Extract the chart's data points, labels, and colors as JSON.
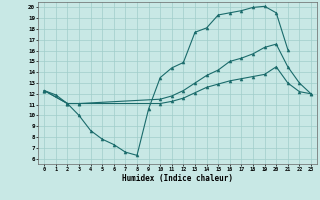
{
  "background_color": "#c8e8e5",
  "grid_color": "#a0ceca",
  "line_color": "#1a6b6b",
  "xlabel": "Humidex (Indice chaleur)",
  "xlim": [
    -0.5,
    23.5
  ],
  "ylim": [
    5.5,
    20.5
  ],
  "xticks": [
    0,
    1,
    2,
    3,
    4,
    5,
    6,
    7,
    8,
    9,
    10,
    11,
    12,
    13,
    14,
    15,
    16,
    17,
    18,
    19,
    20,
    21,
    22,
    23
  ],
  "yticks": [
    6,
    7,
    8,
    9,
    10,
    11,
    12,
    13,
    14,
    15,
    16,
    17,
    18,
    19,
    20
  ],
  "curve1_x": [
    0,
    1,
    2,
    3,
    4,
    5,
    6,
    7,
    8,
    9,
    10,
    11,
    12,
    13,
    14,
    15,
    16,
    17,
    18,
    19,
    20,
    21
  ],
  "curve1_y": [
    12.3,
    11.9,
    11.1,
    10.0,
    8.6,
    7.8,
    7.3,
    6.6,
    6.3,
    10.6,
    13.5,
    14.4,
    14.9,
    17.7,
    18.1,
    19.3,
    19.5,
    19.7,
    20.0,
    20.1,
    19.5,
    16.1
  ],
  "curve2_x": [
    0,
    2,
    3,
    10,
    11,
    12,
    13,
    14,
    15,
    16,
    17,
    18,
    19,
    20,
    21,
    22,
    23
  ],
  "curve2_y": [
    12.3,
    11.1,
    11.1,
    11.5,
    11.8,
    12.3,
    13.0,
    13.7,
    14.2,
    15.0,
    15.3,
    15.7,
    16.3,
    16.6,
    14.5,
    13.0,
    12.0
  ],
  "curve3_x": [
    0,
    2,
    3,
    10,
    11,
    12,
    13,
    14,
    15,
    16,
    17,
    18,
    19,
    20,
    21,
    22,
    23
  ],
  "curve3_y": [
    12.3,
    11.1,
    11.1,
    11.1,
    11.3,
    11.6,
    12.1,
    12.6,
    12.9,
    13.2,
    13.4,
    13.6,
    13.8,
    14.5,
    13.0,
    12.2,
    12.0
  ]
}
